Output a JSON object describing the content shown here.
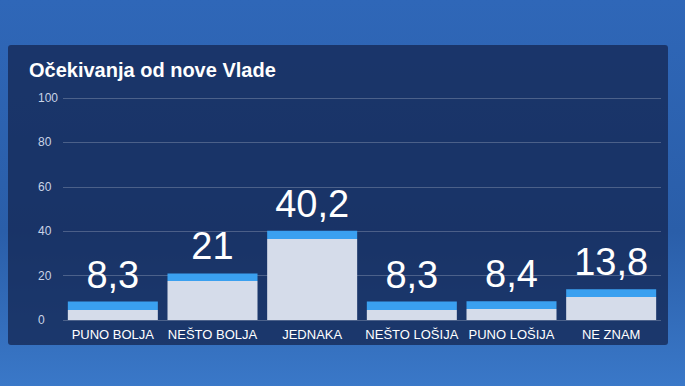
{
  "chart_data": {
    "type": "bar",
    "title": "Očekivanja od nove Vlade",
    "categories": [
      "PUNO BOLJA",
      "NEŠTO BOLJA",
      "JEDNAKA",
      "NEŠTO LOŠIJA",
      "PUNO LOŠIJA",
      "NE ZNAM"
    ],
    "values": [
      8.3,
      21,
      40.2,
      8.3,
      8.4,
      13.8
    ],
    "value_labels": [
      "8,3",
      "21",
      "40,2",
      "8,3",
      "8,4",
      "13,8"
    ],
    "color": "#d5dcea",
    "ylim": [
      0,
      100
    ],
    "yticks": [
      0,
      20,
      40,
      60,
      80,
      100
    ],
    "grid": true,
    "data_labels": true
  }
}
